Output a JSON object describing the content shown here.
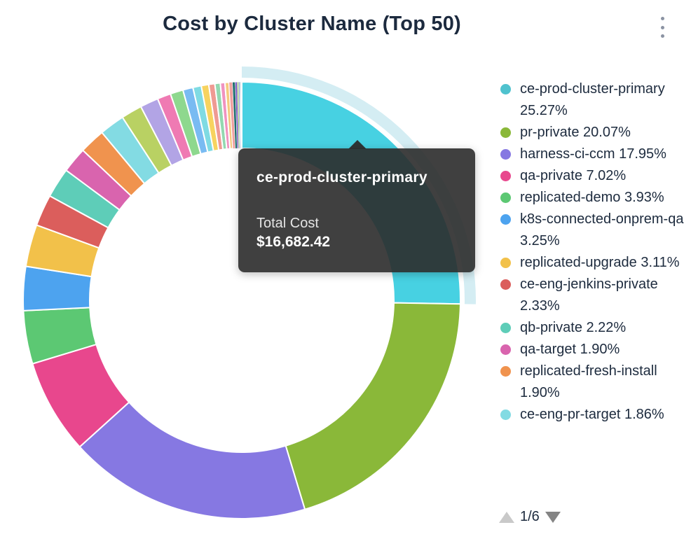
{
  "header": {
    "title": "Cost by Cluster Name (Top 50)",
    "menu_icon": "kebab-vertical-icon"
  },
  "tooltip": {
    "name": "ce-prod-cluster-primary",
    "metric_label": "Total Cost",
    "value": "$16,682.42"
  },
  "legend": {
    "page_indicator": "1/6",
    "prev_icon": "triangle-up-icon",
    "next_icon": "triangle-down-icon"
  },
  "chart_data": {
    "type": "pie",
    "subtype": "donut",
    "title": "Cost by Cluster Name (Top 50)",
    "units": "percent share of total cost",
    "legend_position": "right",
    "start_angle_deg": 0,
    "direction": "clockwise",
    "highlighted_slice": "ce-prod-cluster-primary",
    "highlight_color": "#47d1e2",
    "halo_color": "#d4edf3",
    "highlighted_total_cost": "$16,682.42",
    "slices": [
      {
        "name": "ce-prod-cluster-primary",
        "pct": 25.27,
        "color": "#4fc2ce",
        "label": "ce-prod-cluster-primary 25.27%"
      },
      {
        "name": "pr-private",
        "pct": 20.07,
        "color": "#8ab839",
        "label": "pr-private 20.07%"
      },
      {
        "name": "harness-ci-ccm",
        "pct": 17.95,
        "color": "#8678e2",
        "label": "harness-ci-ccm 17.95%"
      },
      {
        "name": "qa-private",
        "pct": 7.02,
        "color": "#e8478d",
        "label": "qa-private 7.02%"
      },
      {
        "name": "replicated-demo",
        "pct": 3.93,
        "color": "#5cc873",
        "label": "replicated-demo 3.93%"
      },
      {
        "name": "k8s-connected-onprem-qa",
        "pct": 3.25,
        "color": "#4da3ef",
        "label": "k8s-connected-onprem-qa 3.25%"
      },
      {
        "name": "replicated-upgrade",
        "pct": 3.11,
        "color": "#f2c14a",
        "label": "replicated-upgrade 3.11%"
      },
      {
        "name": "ce-eng-jenkins-private",
        "pct": 2.33,
        "color": "#db5e5c",
        "label": "ce-eng-jenkins-private 2.33%"
      },
      {
        "name": "qb-private",
        "pct": 2.22,
        "color": "#5ecdb8",
        "label": "qb-private 2.22%"
      },
      {
        "name": "qa-target",
        "pct": 1.9,
        "color": "#d964ae",
        "label": "qa-target 1.90%"
      },
      {
        "name": "replicated-fresh-install",
        "pct": 1.9,
        "color": "#f0934e",
        "label": "replicated-fresh-install 1.90%"
      },
      {
        "name": "ce-eng-pr-target",
        "pct": 1.86,
        "color": "#83dbe3",
        "label": "ce-eng-pr-target 1.86%"
      }
    ],
    "unlabeled_slices": [
      {
        "pct": 1.55,
        "color": "#b9d163"
      },
      {
        "pct": 1.35,
        "color": "#b2a4e5"
      },
      {
        "pct": 1.0,
        "color": "#ef7ab3"
      },
      {
        "pct": 0.95,
        "color": "#8ed88e"
      },
      {
        "pct": 0.75,
        "color": "#79bbf2"
      },
      {
        "pct": 0.62,
        "color": "#7fdbe3"
      },
      {
        "pct": 0.55,
        "color": "#f7d35f"
      },
      {
        "pct": 0.45,
        "color": "#ef9a93"
      },
      {
        "pct": 0.4,
        "color": "#93d8b0"
      },
      {
        "pct": 0.34,
        "color": "#f092c0"
      },
      {
        "pct": 0.3,
        "color": "#f5c97e"
      },
      {
        "pct": 0.25,
        "color": "#efa0a0"
      },
      {
        "pct": 0.2,
        "color": "#1f6e6e"
      },
      {
        "pct": 0.15,
        "color": "#7e57c2"
      },
      {
        "pct": 0.1,
        "color": "#9ccc65"
      },
      {
        "pct": 0.07,
        "color": "#5c6bc0"
      },
      {
        "pct": 0.05,
        "color": "#26a69a"
      },
      {
        "pct": 0.04,
        "color": "#ab47bc"
      },
      {
        "pct": 0.03,
        "color": "#e57373"
      },
      {
        "pct": 0.02,
        "color": "#455a64"
      },
      {
        "pct": 0.02,
        "color": "#8d6e63"
      }
    ]
  }
}
